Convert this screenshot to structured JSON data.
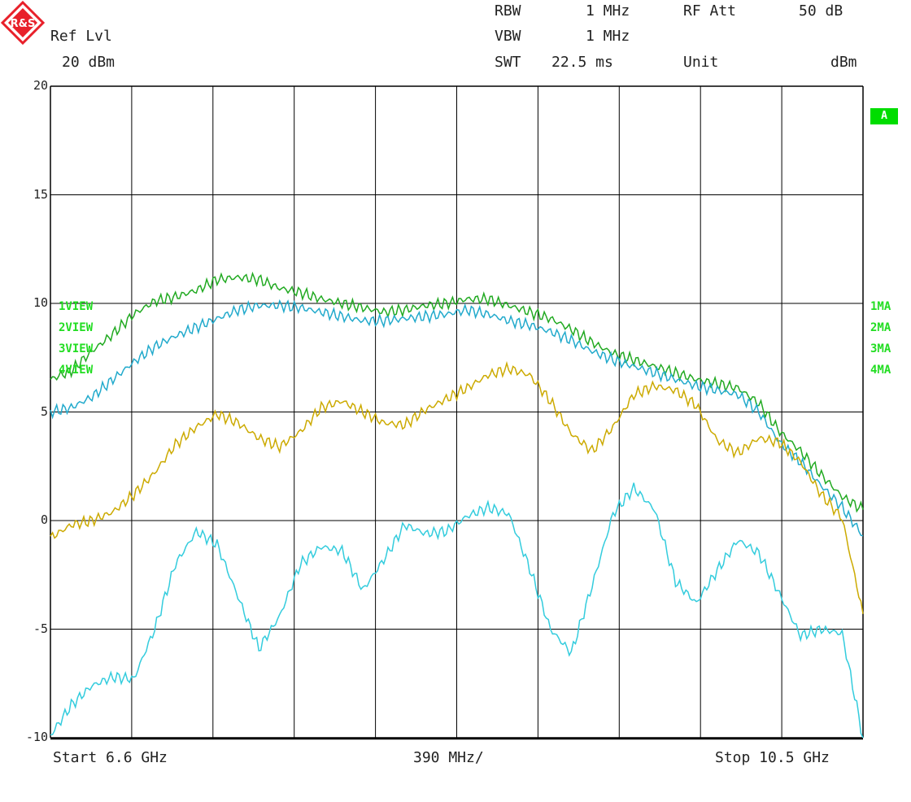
{
  "logo": {
    "text": "R&S",
    "color": "#e8202a"
  },
  "header": {
    "ref_lvl_label": "Ref Lvl",
    "ref_lvl_value": "20 dBm",
    "rbw_label": "RBW",
    "rbw_value": "1 MHz",
    "vbw_label": "VBW",
    "vbw_value": "1 MHz",
    "swt_label": "SWT",
    "swt_value": "22.5 ms",
    "rfatt_label": "RF Att",
    "rfatt_value": "50 dB",
    "unit_label": "Unit",
    "unit_value": "dBm"
  },
  "badge": {
    "text": "A",
    "color": "#00dd00"
  },
  "left_labels": [
    "1VIEW",
    "2VIEW",
    "3VIEW",
    "4VIEW"
  ],
  "right_labels": [
    "1MA",
    "2MA",
    "3MA",
    "4MA"
  ],
  "label_color": "#22dd22",
  "footer": {
    "start": "Start 6.6 GHz",
    "div": "390 MHz/",
    "stop": "Stop 10.5 GHz"
  },
  "chart_data": {
    "type": "line",
    "xlabel": "",
    "ylabel": "",
    "xlim": [
      6.6,
      10.5
    ],
    "ylim": [
      -10,
      20
    ],
    "yticks": [
      20,
      15,
      10,
      5,
      0,
      -5,
      -10
    ],
    "x_divisions": 10,
    "grid": true,
    "x_unit": "GHz",
    "y_unit": "dBm",
    "x": [
      6.6,
      6.7,
      6.8,
      6.9,
      7.0,
      7.1,
      7.2,
      7.3,
      7.4,
      7.5,
      7.6,
      7.7,
      7.8,
      7.9,
      8.0,
      8.1,
      8.2,
      8.3,
      8.4,
      8.5,
      8.6,
      8.7,
      8.8,
      8.9,
      9.0,
      9.1,
      9.2,
      9.3,
      9.4,
      9.5,
      9.6,
      9.7,
      9.8,
      9.9,
      10.0,
      10.1,
      10.2,
      10.3,
      10.4,
      10.5
    ],
    "series": [
      {
        "color": "#22aa22",
        "values": [
          6.5,
          6.9,
          7.8,
          8.6,
          9.5,
          10.1,
          10.3,
          10.6,
          11.1,
          11.2,
          11.1,
          10.7,
          10.5,
          10.2,
          10.0,
          9.8,
          9.6,
          9.7,
          9.9,
          10.0,
          10.2,
          10.2,
          9.9,
          9.6,
          9.3,
          8.8,
          8.2,
          7.7,
          7.4,
          7.1,
          6.8,
          6.5,
          6.3,
          6.1,
          5.4,
          4.1,
          3.2,
          2.1,
          1.1,
          0.5
        ]
      },
      {
        "color": "#22aacc",
        "values": [
          5.0,
          5.2,
          5.7,
          6.5,
          7.3,
          8.0,
          8.5,
          8.9,
          9.3,
          9.7,
          9.9,
          9.9,
          9.8,
          9.6,
          9.4,
          9.2,
          9.2,
          9.3,
          9.4,
          9.5,
          9.7,
          9.5,
          9.2,
          9.0,
          8.7,
          8.3,
          7.8,
          7.4,
          7.1,
          6.8,
          6.5,
          6.2,
          6.0,
          5.8,
          5.0,
          3.6,
          2.7,
          1.6,
          0.6,
          -0.7
        ]
      },
      {
        "color": "#ccaa00",
        "values": [
          -0.8,
          -0.2,
          0.0,
          0.4,
          1.2,
          2.2,
          3.5,
          4.3,
          4.9,
          4.5,
          3.8,
          3.4,
          4.1,
          5.2,
          5.5,
          5.0,
          4.5,
          4.4,
          5.1,
          5.6,
          6.1,
          6.7,
          7.0,
          6.7,
          5.5,
          4.0,
          3.2,
          4.3,
          5.8,
          6.2,
          6.0,
          5.3,
          3.7,
          3.1,
          3.8,
          3.6,
          2.7,
          1.2,
          0.1,
          -4.3
        ]
      },
      {
        "color": "#33ccdd",
        "values": [
          -9.9,
          -8.5,
          -7.6,
          -7.2,
          -7.3,
          -5.0,
          -2.0,
          -0.5,
          -1.1,
          -3.5,
          -5.9,
          -4.4,
          -2.0,
          -1.2,
          -1.4,
          -3.2,
          -1.8,
          -0.2,
          -0.6,
          -0.5,
          0.2,
          0.6,
          0.3,
          -2.2,
          -5.0,
          -6.1,
          -3.0,
          0.3,
          1.5,
          0.5,
          -2.8,
          -3.8,
          -2.3,
          -0.9,
          -1.5,
          -3.4,
          -5.3,
          -5.0,
          -5.2,
          -10.0
        ]
      }
    ]
  }
}
